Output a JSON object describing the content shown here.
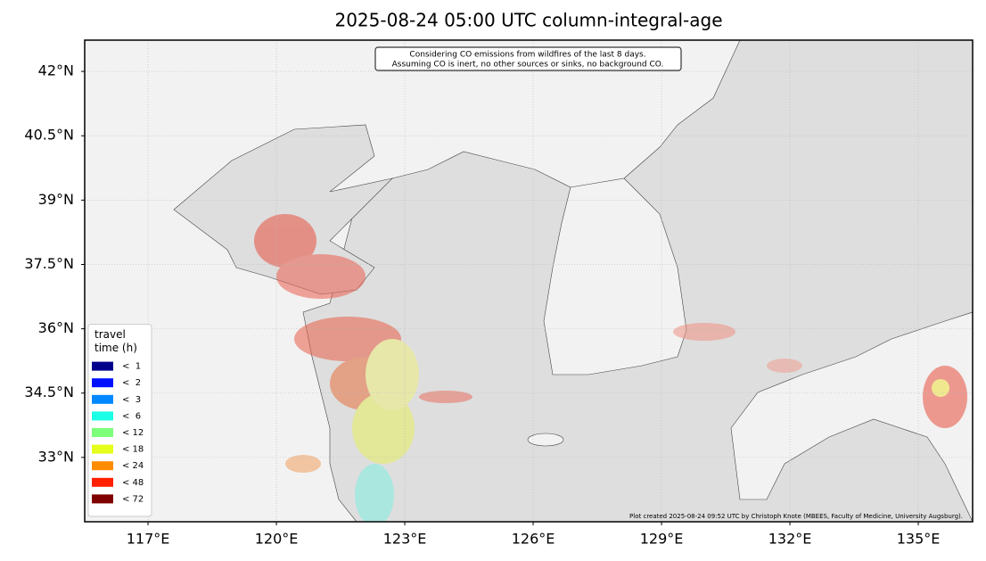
{
  "chart_data": {
    "type": "map",
    "title": "2025-08-24 05:00 UTC column-integral-age",
    "xlim": [
      115.52,
      136.27
    ],
    "ylim": [
      31.5,
      42.73
    ],
    "xticks": [
      {
        "value": 117,
        "label": "117°E"
      },
      {
        "value": 120,
        "label": "120°E"
      },
      {
        "value": 123,
        "label": "123°E"
      },
      {
        "value": 126,
        "label": "126°E"
      },
      {
        "value": 129,
        "label": "129°E"
      },
      {
        "value": 132,
        "label": "132°E"
      },
      {
        "value": 135,
        "label": "135°E"
      }
    ],
    "yticks": [
      {
        "value": 33,
        "label": "33°N"
      },
      {
        "value": 34.5,
        "label": "34.5°N"
      },
      {
        "value": 36,
        "label": "36°N"
      },
      {
        "value": 37.5,
        "label": "37.5°N"
      },
      {
        "value": 39,
        "label": "39°N"
      },
      {
        "value": 40.5,
        "label": "40.5°N"
      },
      {
        "value": 42,
        "label": "42°N"
      }
    ],
    "grid": true,
    "annotation": [
      "Considering CO emissions from wildfires of the last 8 days.",
      "Assuming CO is inert, no other sources or sinks, no background CO."
    ],
    "credit": "Plot created 2025-08-24 09:52 UTC by Christoph Knote (MBEES, Faculty of Medicine, University Augsburg).",
    "legend": {
      "loc": "lower left",
      "title": [
        "travel",
        "time (h)"
      ],
      "entries": [
        {
          "label": "<  1",
          "color": "#00008b"
        },
        {
          "label": "<  2",
          "color": "#0010ff"
        },
        {
          "label": "<  3",
          "color": "#0088ff"
        },
        {
          "label": "<  6",
          "color": "#1affe6"
        },
        {
          "label": "< 12",
          "color": "#7dff7a"
        },
        {
          "label": "< 18",
          "color": "#e6ff1a"
        },
        {
          "label": "< 24",
          "color": "#ff8c00"
        },
        {
          "label": "< 48",
          "color": "#ff2000"
        },
        {
          "label": "< 72",
          "color": "#800000"
        }
      ]
    }
  }
}
